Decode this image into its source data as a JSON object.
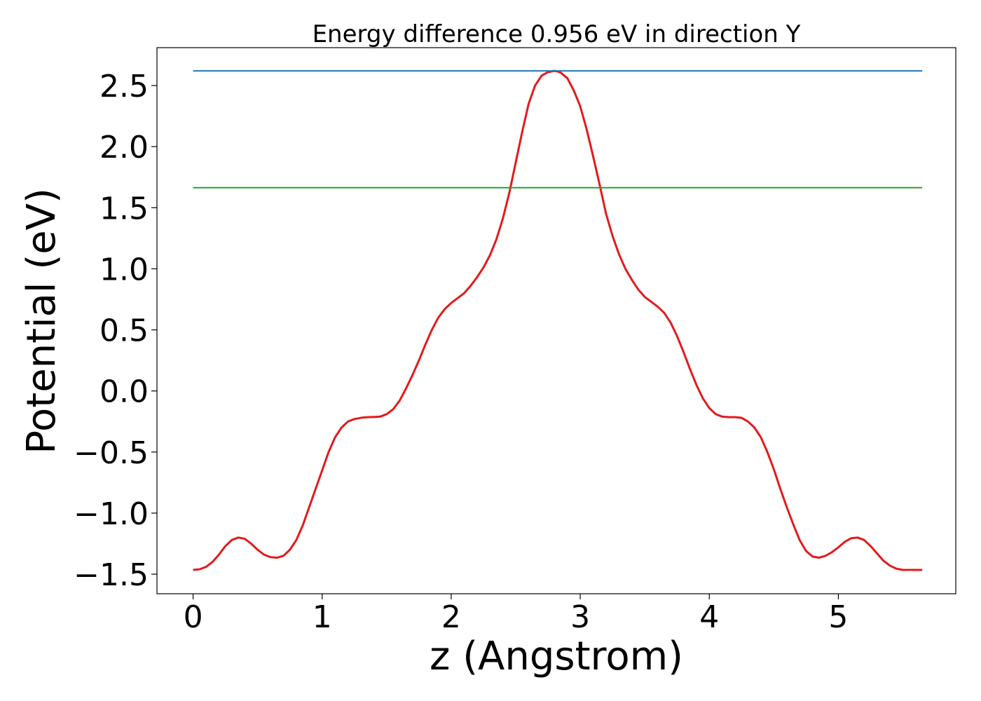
{
  "chart_data": {
    "type": "line",
    "title": "Energy difference 0.956 eV in direction Y",
    "xlabel": "z (Angstrom)",
    "ylabel": "Potential (eV)",
    "xlim": [
      -0.28,
      5.91
    ],
    "ylim": [
      -1.66,
      2.81
    ],
    "xticks": [
      0,
      1,
      2,
      3,
      4,
      5
    ],
    "xtick_labels": [
      "0",
      "1",
      "2",
      "3",
      "4",
      "5"
    ],
    "yticks": [
      -1.5,
      -1.0,
      -0.5,
      0.0,
      0.5,
      1.0,
      1.5,
      2.0,
      2.5
    ],
    "ytick_labels": [
      "−1.5",
      "−1.0",
      "−0.5",
      "0.0",
      "0.5",
      "1.0",
      "1.5",
      "2.0",
      "2.5"
    ],
    "grid": false,
    "legend": "none",
    "series": [
      {
        "color": "#e31a1c",
        "x": [
          0.0,
          0.05,
          0.1,
          0.15,
          0.2,
          0.25,
          0.3,
          0.35,
          0.4,
          0.45,
          0.5,
          0.55,
          0.6,
          0.65,
          0.7,
          0.75,
          0.8,
          0.85,
          0.9,
          0.95,
          1.0,
          1.05,
          1.1,
          1.15,
          1.2,
          1.25,
          1.3,
          1.35,
          1.4,
          1.45,
          1.5,
          1.55,
          1.6,
          1.65,
          1.7,
          1.75,
          1.8,
          1.85,
          1.9,
          1.95,
          2.0,
          2.05,
          2.1,
          2.15,
          2.2,
          2.25,
          2.3,
          2.35,
          2.4,
          2.45,
          2.5,
          2.55,
          2.6,
          2.65,
          2.7,
          2.75,
          2.8,
          2.825,
          2.85,
          2.9,
          2.95,
          3.0,
          3.05,
          3.1,
          3.15,
          3.2,
          3.25,
          3.3,
          3.35,
          3.4,
          3.45,
          3.5,
          3.55,
          3.6,
          3.65,
          3.7,
          3.75,
          3.8,
          3.85,
          3.9,
          3.95,
          4.0,
          4.05,
          4.1,
          4.15,
          4.2,
          4.25,
          4.3,
          4.35,
          4.4,
          4.45,
          4.5,
          4.55,
          4.6,
          4.65,
          4.7,
          4.75,
          4.8,
          4.85,
          4.9,
          4.95,
          5.0,
          5.05,
          5.1,
          5.15,
          5.2,
          5.25,
          5.3,
          5.35,
          5.4,
          5.45,
          5.5,
          5.55,
          5.6,
          5.65
        ],
        "y": [
          -1.465,
          -1.46,
          -1.44,
          -1.4,
          -1.34,
          -1.27,
          -1.22,
          -1.2,
          -1.21,
          -1.25,
          -1.3,
          -1.34,
          -1.36,
          -1.365,
          -1.35,
          -1.3,
          -1.22,
          -1.1,
          -0.95,
          -0.8,
          -0.65,
          -0.5,
          -0.38,
          -0.3,
          -0.25,
          -0.23,
          -0.22,
          -0.215,
          -0.213,
          -0.21,
          -0.19,
          -0.15,
          -0.08,
          0.02,
          0.13,
          0.25,
          0.38,
          0.5,
          0.6,
          0.67,
          0.72,
          0.76,
          0.8,
          0.86,
          0.93,
          1.01,
          1.11,
          1.24,
          1.41,
          1.62,
          1.87,
          2.12,
          2.35,
          2.5,
          2.58,
          2.61,
          2.62,
          2.615,
          2.605,
          2.56,
          2.46,
          2.33,
          2.14,
          1.92,
          1.69,
          1.45,
          1.27,
          1.12,
          1.0,
          0.91,
          0.83,
          0.77,
          0.73,
          0.69,
          0.64,
          0.56,
          0.45,
          0.32,
          0.18,
          0.05,
          -0.06,
          -0.14,
          -0.19,
          -0.21,
          -0.215,
          -0.215,
          -0.22,
          -0.25,
          -0.3,
          -0.38,
          -0.5,
          -0.64,
          -0.8,
          -0.95,
          -1.09,
          -1.22,
          -1.31,
          -1.355,
          -1.365,
          -1.35,
          -1.32,
          -1.28,
          -1.235,
          -1.205,
          -1.2,
          -1.22,
          -1.27,
          -1.33,
          -1.39,
          -1.43,
          -1.455,
          -1.465,
          -1.465,
          -1.465,
          -1.465
        ]
      },
      {
        "color": "#1f77b4",
        "x": [
          0.0,
          5.65
        ],
        "y": [
          2.62,
          2.62
        ]
      },
      {
        "color": "#2ca02c",
        "x": [
          0.0,
          5.65
        ],
        "y": [
          1.664,
          1.664
        ]
      }
    ]
  }
}
